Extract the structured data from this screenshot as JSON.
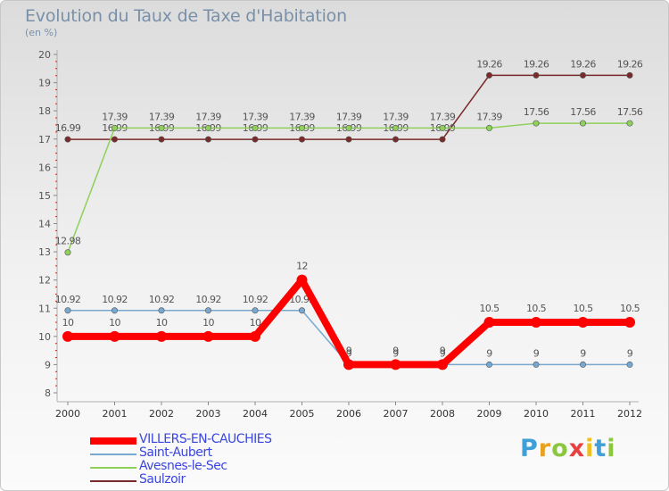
{
  "title": "Evolution du Taux de Taxe d'Habitation",
  "subtitle": "(en %)",
  "logo": {
    "text": "Proxiti",
    "colors": [
      "#3fa0d8",
      "#e8a020",
      "#8cc63f",
      "#e84040",
      "#f0c020",
      "#3fa0d8",
      "#8cc63f"
    ]
  },
  "chart_data": {
    "type": "line",
    "x": [
      "2000",
      "2001",
      "2002",
      "2003",
      "2004",
      "2005",
      "2006",
      "2007",
      "2008",
      "2009",
      "2010",
      "2011",
      "2012"
    ],
    "ylim": [
      8,
      20
    ],
    "yticks": [
      "8",
      "9",
      "10",
      "11",
      "12",
      "13",
      "14",
      "15",
      "16",
      "17",
      "18",
      "19",
      "20"
    ],
    "grid": false,
    "legend_position": "bottom-left",
    "series": [
      {
        "name": "Saulzoir",
        "color": "#7a2a2a",
        "values": [
          16.99,
          16.99,
          16.99,
          16.99,
          16.99,
          16.99,
          16.99,
          16.99,
          16.99,
          19.26,
          19.26,
          19.26,
          19.26
        ],
        "labels": [
          "16.99",
          "16.99",
          "16.99",
          "16.99",
          "16.99",
          "16.99",
          "16.99",
          "16.99",
          "16.99",
          "19.26",
          "19.26",
          "19.26",
          "19.26"
        ]
      },
      {
        "name": "Avesnes-le-Sec",
        "color": "#8ed05a",
        "values": [
          12.98,
          17.39,
          17.39,
          17.39,
          17.39,
          17.39,
          17.39,
          17.39,
          17.39,
          17.39,
          17.56,
          17.56,
          17.56
        ],
        "labels": [
          "12.98",
          "17.39",
          "17.39",
          "17.39",
          "17.39",
          "17.39",
          "17.39",
          "17.39",
          "17.39",
          "17.39",
          "17.56",
          "17.56",
          "17.56"
        ]
      },
      {
        "name": "Saint-Aubert",
        "color": "#78a8d0",
        "values": [
          10.92,
          10.92,
          10.92,
          10.92,
          10.92,
          10.92,
          9,
          9,
          9,
          9,
          9,
          9,
          9
        ],
        "labels": [
          "10.92",
          "10.92",
          "10.92",
          "10.92",
          "10.92",
          "10.92",
          "9",
          "9",
          "9",
          "9",
          "9",
          "9",
          "9"
        ]
      },
      {
        "name": "VILLERS-EN-CAUCHIES",
        "color": "#ff0000",
        "values": [
          10,
          10,
          10,
          10,
          10,
          12,
          9,
          9,
          9,
          10.5,
          10.5,
          10.5,
          10.5
        ],
        "labels": [
          "10",
          "10",
          "10",
          "10",
          "10",
          "12",
          "9",
          "9",
          "9",
          "10.5",
          "10.5",
          "10.5",
          "10.5"
        ]
      }
    ],
    "legend": [
      "VILLERS-EN-CAUCHIES",
      "Saint-Aubert",
      "Avesnes-le-Sec",
      "Saulzoir"
    ]
  }
}
